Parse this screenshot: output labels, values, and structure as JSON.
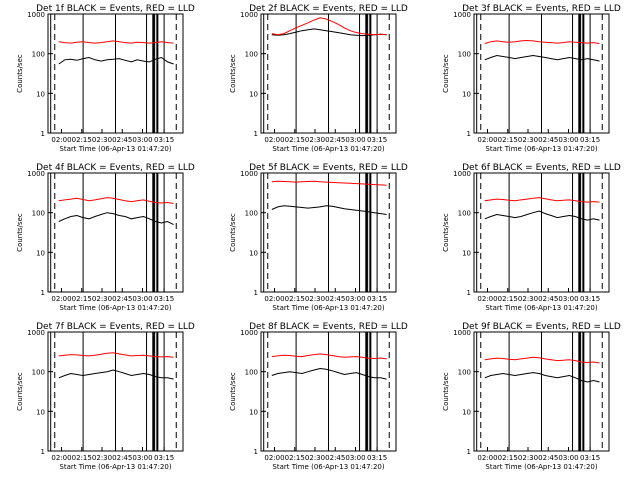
{
  "figure": {
    "ylabel": "Counts/sec",
    "xlabel": "Start Time (06-Apr-13 01:47:20)",
    "x_ticks": [
      "02:00",
      "02:15",
      "02:30",
      "02:45",
      "03:00",
      "03:15"
    ],
    "y_ticks": [
      "1",
      "10",
      "100",
      "1000"
    ],
    "colors": {
      "events": "#000000",
      "lld": "#ff0000"
    }
  },
  "chart_data": [
    {
      "type": "line",
      "title": "Det 1f BLACK = Events, RED = LLD",
      "ylim": [
        1,
        1000
      ],
      "log_y": true,
      "series": [
        {
          "name": "Events",
          "values": [
            55,
            70,
            72,
            68,
            75,
            80,
            70,
            65,
            70,
            72,
            75,
            68,
            62,
            70,
            65,
            62,
            72,
            80,
            62,
            55
          ]
        },
        {
          "name": "LLD",
          "values": [
            200,
            190,
            185,
            195,
            200,
            190,
            185,
            190,
            200,
            210,
            200,
            190,
            185,
            195,
            190,
            185,
            190,
            200,
            190,
            185
          ]
        }
      ]
    },
    {
      "type": "line",
      "title": "Det 2f BLACK = Events, RED = LLD",
      "ylim": [
        1,
        1000
      ],
      "log_y": true,
      "series": [
        {
          "name": "Events",
          "values": [
            300,
            290,
            300,
            320,
            350,
            380,
            400,
            420,
            400,
            380,
            360,
            340,
            320,
            300,
            290,
            285,
            290,
            300,
            310,
            300
          ]
        },
        {
          "name": "LLD",
          "values": [
            320,
            300,
            320,
            380,
            450,
            520,
            600,
            700,
            800,
            750,
            650,
            550,
            450,
            380,
            340,
            320,
            310,
            300,
            310,
            300
          ]
        }
      ]
    },
    {
      "type": "line",
      "title": "Det 3f BLACK = Events, RED = LLD",
      "ylim": [
        1,
        1000
      ],
      "log_y": true,
      "series": [
        {
          "name": "Events",
          "values": [
            70,
            80,
            90,
            85,
            80,
            75,
            80,
            85,
            90,
            85,
            80,
            75,
            70,
            75,
            80,
            75,
            70,
            75,
            70,
            65
          ]
        },
        {
          "name": "LLD",
          "values": [
            180,
            200,
            210,
            200,
            195,
            200,
            210,
            215,
            210,
            200,
            195,
            190,
            185,
            190,
            200,
            195,
            190,
            185,
            190,
            180
          ]
        }
      ]
    },
    {
      "type": "line",
      "title": "Det 4f BLACK = Events, RED = LLD",
      "ylim": [
        1,
        1000
      ],
      "log_y": true,
      "series": [
        {
          "name": "Events",
          "values": [
            60,
            70,
            80,
            85,
            75,
            70,
            80,
            90,
            100,
            95,
            85,
            80,
            70,
            75,
            80,
            70,
            60,
            55,
            60,
            50
          ]
        },
        {
          "name": "LLD",
          "values": [
            200,
            210,
            220,
            230,
            215,
            200,
            210,
            225,
            240,
            230,
            215,
            200,
            190,
            200,
            210,
            195,
            180,
            175,
            180,
            170
          ]
        }
      ]
    },
    {
      "type": "line",
      "title": "Det 5f BLACK = Events, RED = LLD",
      "ylim": [
        1,
        1000
      ],
      "log_y": true,
      "series": [
        {
          "name": "Events",
          "values": [
            120,
            140,
            150,
            145,
            140,
            135,
            130,
            135,
            140,
            150,
            145,
            135,
            125,
            120,
            115,
            110,
            105,
            100,
            95,
            90
          ]
        },
        {
          "name": "LLD",
          "values": [
            600,
            620,
            610,
            600,
            590,
            600,
            610,
            620,
            600,
            590,
            580,
            570,
            560,
            550,
            540,
            530,
            520,
            510,
            500,
            490
          ]
        }
      ]
    },
    {
      "type": "line",
      "title": "Det 6f BLACK = Events, RED = LLD",
      "ylim": [
        1,
        1000
      ],
      "log_y": true,
      "series": [
        {
          "name": "Events",
          "values": [
            70,
            80,
            90,
            85,
            80,
            75,
            80,
            90,
            100,
            110,
            95,
            85,
            75,
            80,
            85,
            80,
            70,
            65,
            70,
            65
          ]
        },
        {
          "name": "LLD",
          "values": [
            200,
            210,
            220,
            215,
            205,
            200,
            210,
            220,
            230,
            240,
            225,
            210,
            200,
            205,
            210,
            200,
            190,
            185,
            190,
            185
          ]
        }
      ]
    },
    {
      "type": "line",
      "title": "Det 7f BLACK = Events, RED = LLD",
      "ylim": [
        1,
        1000
      ],
      "log_y": true,
      "series": [
        {
          "name": "Events",
          "values": [
            70,
            80,
            90,
            85,
            80,
            85,
            90,
            95,
            100,
            110,
            100,
            90,
            80,
            85,
            90,
            85,
            75,
            70,
            70,
            65
          ]
        },
        {
          "name": "LLD",
          "values": [
            250,
            260,
            270,
            265,
            255,
            250,
            260,
            275,
            290,
            300,
            280,
            265,
            250,
            255,
            260,
            250,
            240,
            235,
            240,
            230
          ]
        }
      ]
    },
    {
      "type": "line",
      "title": "Det 8f BLACK = Events, RED = LLD",
      "ylim": [
        1,
        1000
      ],
      "log_y": true,
      "series": [
        {
          "name": "Events",
          "values": [
            80,
            90,
            95,
            100,
            95,
            90,
            100,
            110,
            120,
            115,
            105,
            95,
            85,
            90,
            95,
            85,
            75,
            70,
            70,
            65
          ]
        },
        {
          "name": "LLD",
          "values": [
            240,
            250,
            260,
            255,
            245,
            240,
            255,
            270,
            280,
            270,
            255,
            240,
            230,
            235,
            240,
            230,
            220,
            215,
            220,
            210
          ]
        }
      ]
    },
    {
      "type": "line",
      "title": "Det 9f BLACK = Events, RED = LLD",
      "ylim": [
        1,
        1000
      ],
      "log_y": true,
      "series": [
        {
          "name": "Events",
          "values": [
            70,
            80,
            85,
            90,
            85,
            80,
            85,
            90,
            95,
            90,
            80,
            75,
            70,
            75,
            80,
            70,
            60,
            55,
            60,
            55
          ]
        },
        {
          "name": "LLD",
          "values": [
            200,
            210,
            220,
            215,
            205,
            200,
            210,
            220,
            230,
            225,
            210,
            200,
            190,
            195,
            200,
            190,
            175,
            170,
            175,
            165
          ]
        }
      ]
    }
  ]
}
